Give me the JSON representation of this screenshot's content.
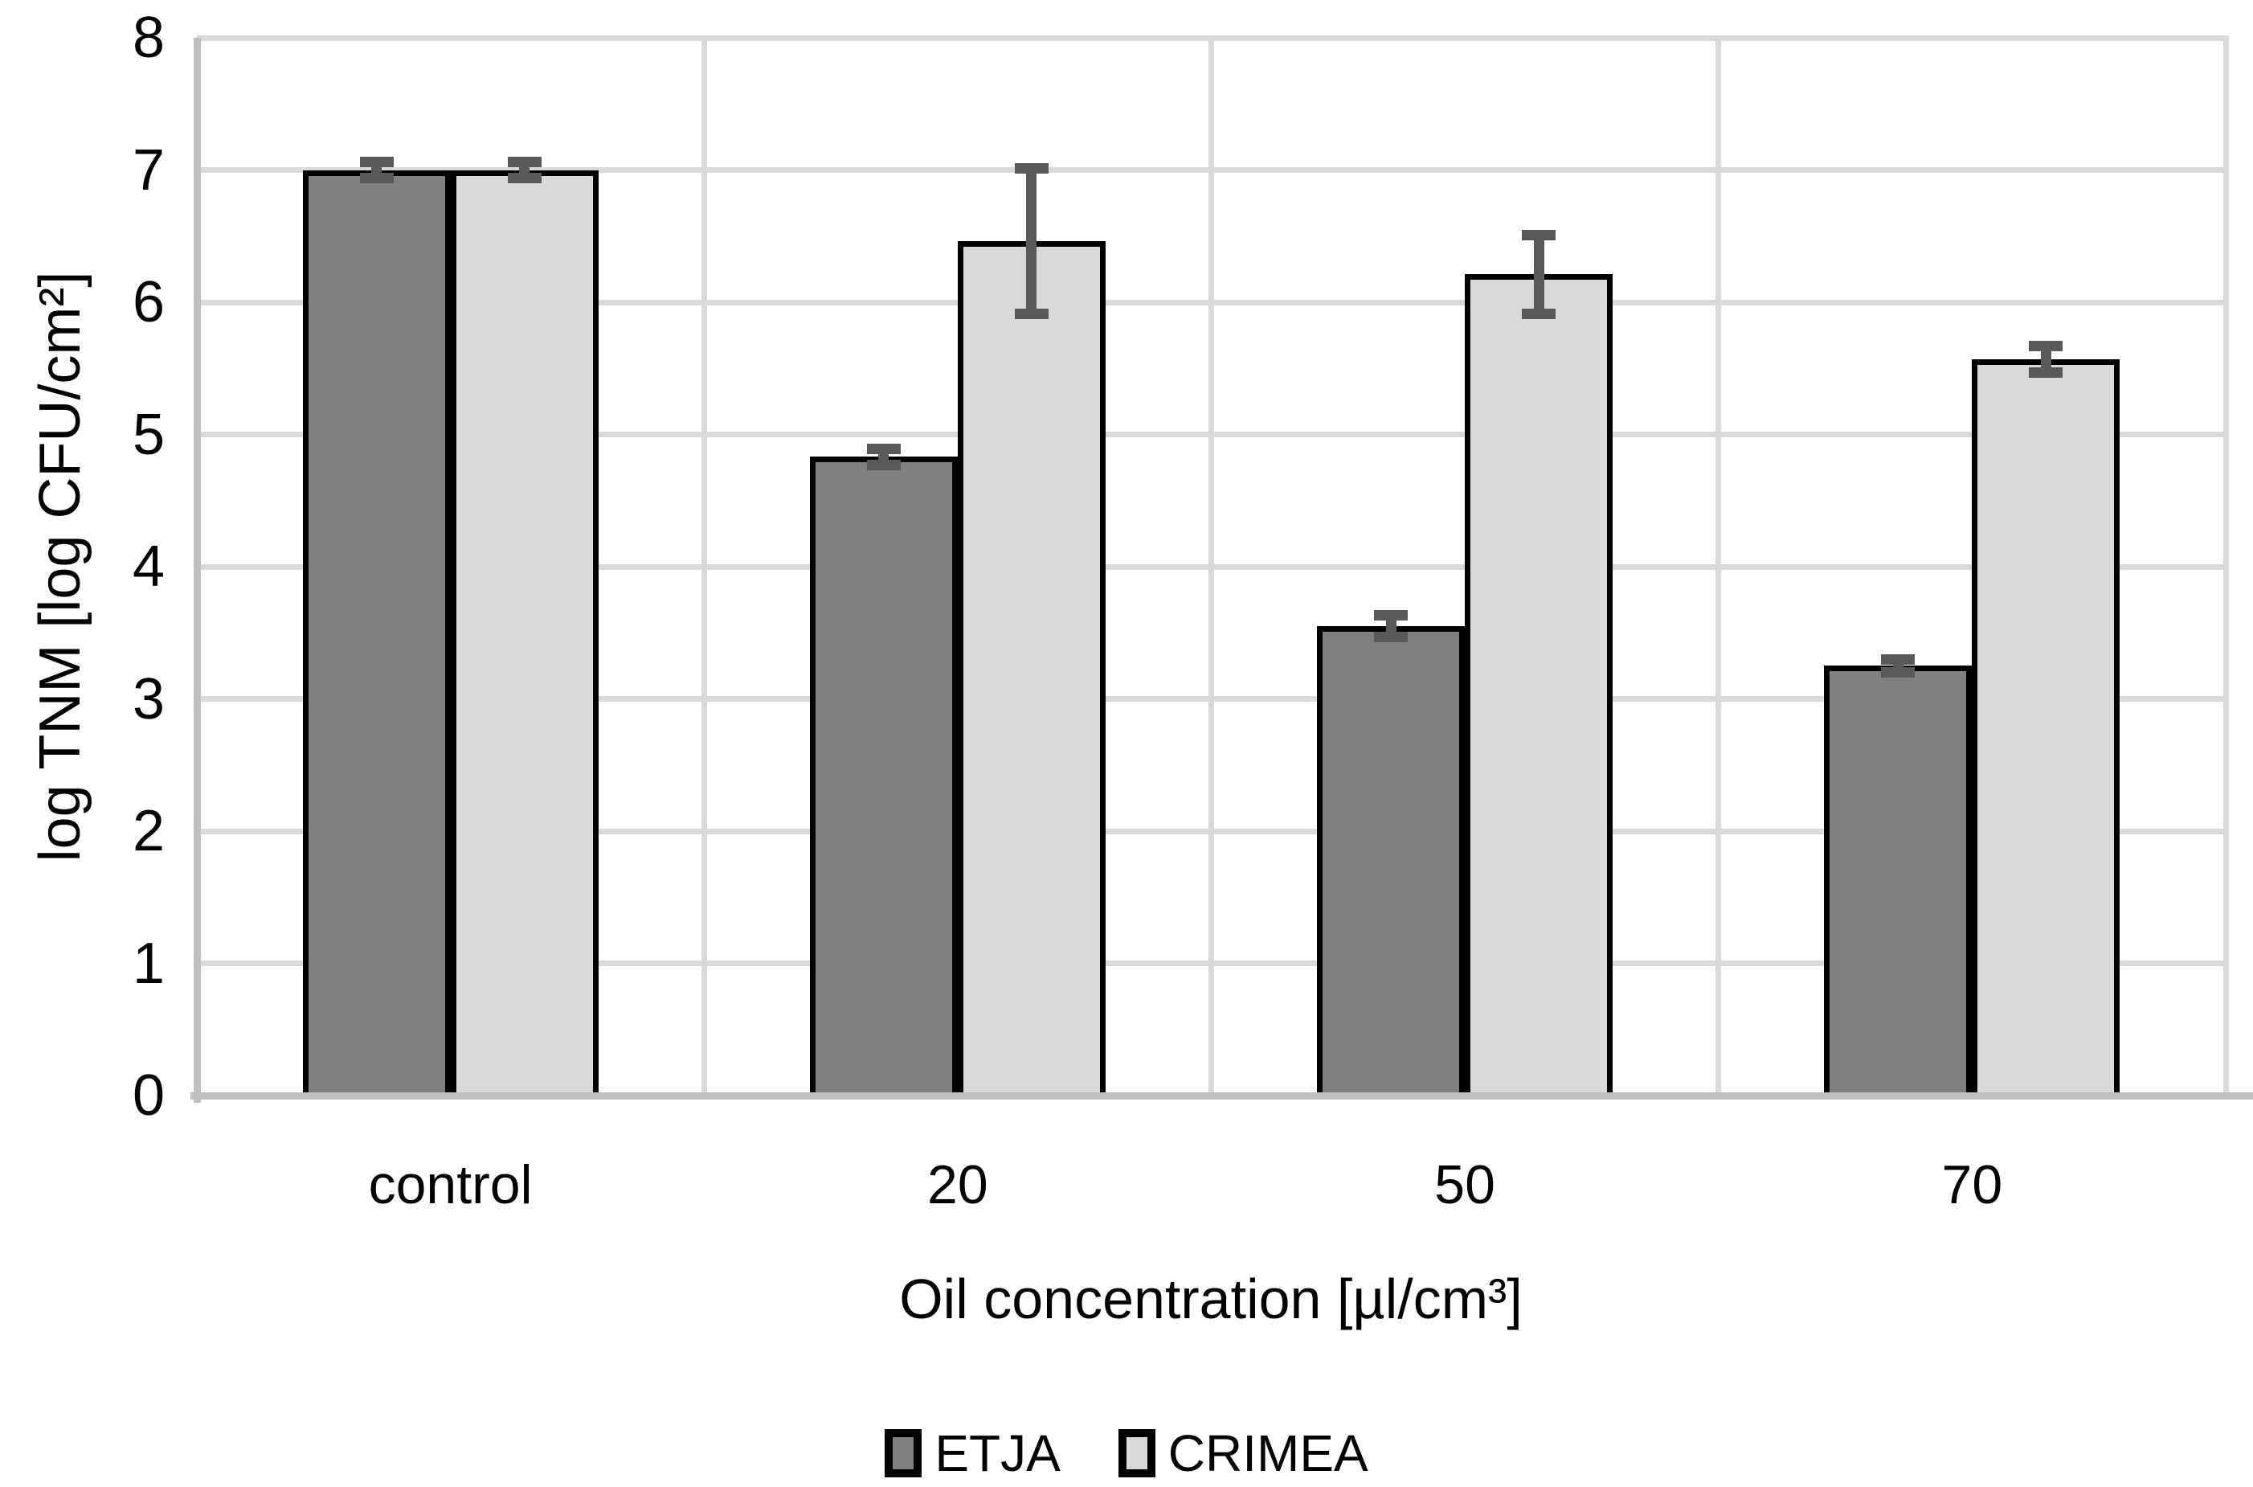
{
  "chart_data": {
    "type": "bar",
    "title": "",
    "categories": [
      "control",
      "20",
      "50",
      "70"
    ],
    "series": [
      {
        "name": "ETJA",
        "color": "#808080",
        "values": [
          7.0,
          4.83,
          3.55,
          3.25
        ],
        "errors": [
          0.06,
          0.06,
          0.08,
          0.05
        ]
      },
      {
        "name": "CRIMEA",
        "color": "#d9d9d9",
        "values": [
          7.0,
          6.46,
          6.21,
          5.57
        ],
        "errors": [
          0.06,
          0.55,
          0.3,
          0.1
        ]
      }
    ],
    "xlabel": "Oil concentration [µl/cm³]",
    "ylabel": "log TNM [log CFU/cm²]",
    "ylim": [
      0,
      8
    ],
    "yticks": [
      0,
      1,
      2,
      3,
      4,
      5,
      6,
      7,
      8
    ],
    "grid": true,
    "legend_position": "bottom-center",
    "colors": {
      "bar_border": "#000000",
      "error_bar": "#595959",
      "gridline": "#d9d9d9",
      "axis_line": "#c0c0c0",
      "text": "#000000",
      "background": "#ffffff"
    }
  }
}
